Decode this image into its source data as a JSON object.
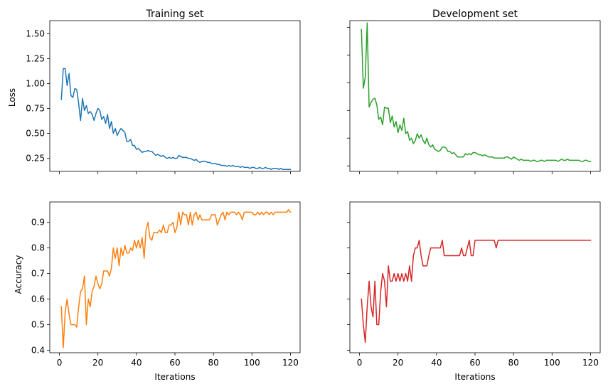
{
  "chart_data": [
    {
      "type": "line",
      "title": "Training set",
      "xlabel": "",
      "ylabel": "Loss",
      "xlim": [
        -5,
        125
      ],
      "ylim": [
        0.12,
        1.63
      ],
      "xticks": [
        0,
        20,
        40,
        60,
        80,
        100,
        120
      ],
      "show_xtick_labels": false,
      "yticks": [
        0.25,
        0.5,
        0.75,
        1.0,
        1.25,
        1.5
      ],
      "ytick_labels": [
        "0.25",
        "0.50",
        "0.75",
        "1.00",
        "1.25",
        "1.50"
      ],
      "show_ytick_labels": true,
      "grid": false,
      "color": "#1f77b4",
      "series": [
        {
          "x": [
            1,
            2,
            3,
            4,
            5,
            6,
            7,
            8,
            9,
            10,
            11,
            12,
            13,
            14,
            15,
            16,
            17,
            18,
            19,
            20,
            21,
            22,
            23,
            24,
            25,
            26,
            27,
            28,
            29,
            30,
            31,
            32,
            33,
            34,
            35,
            36,
            37,
            38,
            39,
            40,
            41,
            42,
            43,
            44,
            45,
            46,
            47,
            48,
            49,
            50,
            51,
            52,
            53,
            54,
            55,
            56,
            57,
            58,
            59,
            60,
            61,
            62,
            63,
            64,
            65,
            66,
            67,
            68,
            69,
            70,
            71,
            72,
            73,
            74,
            75,
            76,
            77,
            78,
            79,
            80,
            81,
            82,
            83,
            84,
            85,
            86,
            87,
            88,
            89,
            90,
            91,
            92,
            93,
            94,
            95,
            96,
            97,
            98,
            99,
            100,
            101,
            102,
            103,
            104,
            105,
            106,
            107,
            108,
            109,
            110,
            111,
            112,
            113,
            114,
            115,
            116,
            117,
            118,
            119,
            120
          ],
          "y": [
            0.84,
            1.15,
            1.15,
            0.98,
            1.1,
            0.88,
            0.86,
            0.95,
            0.94,
            0.8,
            0.63,
            0.85,
            0.73,
            0.78,
            0.7,
            0.72,
            0.69,
            0.63,
            0.7,
            0.75,
            0.73,
            0.64,
            0.67,
            0.6,
            0.69,
            0.55,
            0.62,
            0.5,
            0.55,
            0.48,
            0.52,
            0.55,
            0.53,
            0.51,
            0.42,
            0.42,
            0.44,
            0.38,
            0.38,
            0.34,
            0.35,
            0.33,
            0.31,
            0.32,
            0.32,
            0.33,
            0.32,
            0.32,
            0.3,
            0.28,
            0.29,
            0.28,
            0.27,
            0.28,
            0.26,
            0.25,
            0.26,
            0.25,
            0.26,
            0.25,
            0.25,
            0.28,
            0.27,
            0.26,
            0.26,
            0.26,
            0.25,
            0.25,
            0.24,
            0.23,
            0.24,
            0.22,
            0.21,
            0.22,
            0.22,
            0.22,
            0.21,
            0.21,
            0.2,
            0.2,
            0.2,
            0.19,
            0.19,
            0.18,
            0.18,
            0.18,
            0.17,
            0.18,
            0.17,
            0.18,
            0.17,
            0.17,
            0.17,
            0.16,
            0.17,
            0.16,
            0.16,
            0.16,
            0.15,
            0.16,
            0.16,
            0.15,
            0.15,
            0.16,
            0.15,
            0.15,
            0.16,
            0.15,
            0.15,
            0.14,
            0.15,
            0.15,
            0.15,
            0.14,
            0.15,
            0.14,
            0.14,
            0.14,
            0.14,
            0.14
          ]
        }
      ]
    },
    {
      "type": "line",
      "title": "Development set",
      "xlabel": "",
      "ylabel": "",
      "xlim": [
        -5,
        125
      ],
      "ylim": [
        0.2,
        1.56
      ],
      "xticks": [
        0,
        20,
        40,
        60,
        80,
        100,
        120
      ],
      "show_xtick_labels": false,
      "yticks": [
        0.25,
        0.5,
        0.75,
        1.0,
        1.25,
        1.5
      ],
      "show_ytick_labels": false,
      "grid": false,
      "color": "#2ca02c",
      "series": [
        {
          "x": [
            1,
            2,
            3,
            4,
            5,
            6,
            7,
            8,
            9,
            10,
            11,
            12,
            13,
            14,
            15,
            16,
            17,
            18,
            19,
            20,
            21,
            22,
            23,
            24,
            25,
            26,
            27,
            28,
            29,
            30,
            31,
            32,
            33,
            34,
            35,
            36,
            37,
            38,
            39,
            40,
            41,
            42,
            43,
            44,
            45,
            46,
            47,
            48,
            49,
            50,
            51,
            52,
            53,
            54,
            55,
            56,
            57,
            58,
            59,
            60,
            61,
            62,
            63,
            64,
            65,
            66,
            67,
            68,
            69,
            70,
            71,
            72,
            73,
            74,
            75,
            76,
            77,
            78,
            79,
            80,
            81,
            82,
            83,
            84,
            85,
            86,
            87,
            88,
            89,
            90,
            91,
            92,
            93,
            94,
            95,
            96,
            97,
            98,
            99,
            100,
            101,
            102,
            103,
            104,
            105,
            106,
            107,
            108,
            109,
            110,
            111,
            112,
            113,
            114,
            115,
            116,
            117,
            118,
            119,
            120
          ],
          "y": [
            1.48,
            0.95,
            1.05,
            1.54,
            0.78,
            0.82,
            0.85,
            0.86,
            0.8,
            0.67,
            0.69,
            0.62,
            0.78,
            0.77,
            0.77,
            0.64,
            0.7,
            0.6,
            0.65,
            0.55,
            0.62,
            0.57,
            0.68,
            0.54,
            0.56,
            0.48,
            0.5,
            0.45,
            0.48,
            0.54,
            0.5,
            0.53,
            0.48,
            0.45,
            0.5,
            0.44,
            0.42,
            0.44,
            0.4,
            0.39,
            0.38,
            0.39,
            0.42,
            0.42,
            0.41,
            0.38,
            0.38,
            0.36,
            0.37,
            0.35,
            0.33,
            0.33,
            0.33,
            0.33,
            0.36,
            0.35,
            0.36,
            0.35,
            0.37,
            0.37,
            0.36,
            0.35,
            0.35,
            0.34,
            0.35,
            0.34,
            0.33,
            0.33,
            0.33,
            0.32,
            0.32,
            0.32,
            0.32,
            0.32,
            0.32,
            0.33,
            0.33,
            0.32,
            0.31,
            0.33,
            0.32,
            0.31,
            0.3,
            0.31,
            0.3,
            0.3,
            0.3,
            0.3,
            0.29,
            0.3,
            0.3,
            0.29,
            0.29,
            0.3,
            0.3,
            0.29,
            0.3,
            0.3,
            0.3,
            0.3,
            0.3,
            0.3,
            0.29,
            0.3,
            0.31,
            0.3,
            0.3,
            0.31,
            0.3,
            0.3,
            0.3,
            0.3,
            0.3,
            0.3,
            0.29,
            0.29,
            0.3,
            0.3,
            0.29,
            0.29
          ]
        }
      ]
    },
    {
      "type": "line",
      "title": "",
      "xlabel": "Iterations",
      "ylabel": "Accuracy",
      "xlim": [
        -5,
        125
      ],
      "ylim": [
        0.39,
        0.98
      ],
      "xticks": [
        0,
        20,
        40,
        60,
        80,
        100,
        120
      ],
      "xtick_labels": [
        "0",
        "20",
        "40",
        "60",
        "80",
        "100",
        "120"
      ],
      "show_xtick_labels": true,
      "yticks": [
        0.4,
        0.5,
        0.6,
        0.7,
        0.8,
        0.9
      ],
      "ytick_labels": [
        "0.4",
        "0.5",
        "0.6",
        "0.7",
        "0.8",
        "0.9"
      ],
      "show_ytick_labels": true,
      "grid": false,
      "color": "#ff7f0e",
      "series": [
        {
          "x": [
            1,
            2,
            3,
            4,
            5,
            6,
            7,
            8,
            9,
            10,
            11,
            12,
            13,
            14,
            15,
            16,
            17,
            18,
            19,
            20,
            21,
            22,
            23,
            24,
            25,
            26,
            27,
            28,
            29,
            30,
            31,
            32,
            33,
            34,
            35,
            36,
            37,
            38,
            39,
            40,
            41,
            42,
            43,
            44,
            45,
            46,
            47,
            48,
            49,
            50,
            51,
            52,
            53,
            54,
            55,
            56,
            57,
            58,
            59,
            60,
            61,
            62,
            63,
            64,
            65,
            66,
            67,
            68,
            69,
            70,
            71,
            72,
            73,
            74,
            75,
            76,
            77,
            78,
            79,
            80,
            81,
            82,
            83,
            84,
            85,
            86,
            87,
            88,
            89,
            90,
            91,
            92,
            93,
            94,
            95,
            96,
            97,
            98,
            99,
            100,
            101,
            102,
            103,
            104,
            105,
            106,
            107,
            108,
            109,
            110,
            111,
            112,
            113,
            114,
            115,
            116,
            117,
            118,
            119,
            120
          ],
          "y": [
            0.57,
            0.41,
            0.55,
            0.6,
            0.54,
            0.5,
            0.5,
            0.5,
            0.49,
            0.57,
            0.63,
            0.64,
            0.69,
            0.5,
            0.6,
            0.57,
            0.63,
            0.65,
            0.69,
            0.66,
            0.64,
            0.66,
            0.71,
            0.71,
            0.71,
            0.69,
            0.72,
            0.8,
            0.76,
            0.8,
            0.73,
            0.8,
            0.77,
            0.81,
            0.78,
            0.78,
            0.8,
            0.79,
            0.83,
            0.8,
            0.83,
            0.8,
            0.84,
            0.76,
            0.87,
            0.9,
            0.84,
            0.83,
            0.86,
            0.86,
            0.86,
            0.87,
            0.86,
            0.89,
            0.86,
            0.86,
            0.89,
            0.89,
            0.9,
            0.86,
            0.88,
            0.94,
            0.89,
            0.94,
            0.93,
            0.93,
            0.89,
            0.94,
            0.89,
            0.93,
            0.94,
            0.91,
            0.93,
            0.91,
            0.91,
            0.91,
            0.91,
            0.91,
            0.93,
            0.93,
            0.93,
            0.89,
            0.91,
            0.93,
            0.94,
            0.91,
            0.94,
            0.93,
            0.94,
            0.94,
            0.94,
            0.93,
            0.94,
            0.93,
            0.91,
            0.94,
            0.94,
            0.94,
            0.94,
            0.94,
            0.93,
            0.93,
            0.94,
            0.93,
            0.94,
            0.93,
            0.94,
            0.94,
            0.93,
            0.94,
            0.93,
            0.94,
            0.94,
            0.94,
            0.94,
            0.94,
            0.94,
            0.94,
            0.95,
            0.94
          ]
        }
      ]
    },
    {
      "type": "line",
      "title": "",
      "xlabel": "Iterations",
      "ylabel": "",
      "xlim": [
        -5,
        125
      ],
      "ylim": [
        0.39,
        0.98
      ],
      "xticks": [
        0,
        20,
        40,
        60,
        80,
        100,
        120
      ],
      "xtick_labels": [
        "0",
        "20",
        "40",
        "60",
        "80",
        "100",
        "120"
      ],
      "show_xtick_labels": true,
      "yticks": [
        0.4,
        0.5,
        0.6,
        0.7,
        0.8,
        0.9
      ],
      "show_ytick_labels": false,
      "grid": false,
      "color": "#d62728",
      "series": [
        {
          "x": [
            1,
            2,
            3,
            4,
            5,
            6,
            7,
            8,
            9,
            10,
            11,
            12,
            13,
            14,
            15,
            16,
            17,
            18,
            19,
            20,
            21,
            22,
            23,
            24,
            25,
            26,
            27,
            28,
            29,
            30,
            31,
            32,
            33,
            34,
            35,
            36,
            37,
            38,
            39,
            40,
            41,
            42,
            43,
            44,
            45,
            46,
            47,
            48,
            49,
            50,
            51,
            52,
            53,
            54,
            55,
            56,
            57,
            58,
            59,
            60,
            61,
            62,
            63,
            64,
            65,
            66,
            67,
            68,
            69,
            70,
            71,
            72,
            73,
            74,
            75,
            76,
            77,
            78,
            79,
            80,
            81,
            82,
            83,
            84,
            85,
            86,
            87,
            88,
            89,
            90,
            91,
            92,
            93,
            94,
            95,
            96,
            97,
            98,
            99,
            100,
            101,
            102,
            103,
            104,
            105,
            106,
            107,
            108,
            109,
            110,
            111,
            112,
            113,
            114,
            115,
            116,
            117,
            118,
            119,
            120
          ],
          "y": [
            0.6,
            0.5,
            0.43,
            0.57,
            0.67,
            0.57,
            0.53,
            0.67,
            0.5,
            0.5,
            0.63,
            0.7,
            0.67,
            0.57,
            0.73,
            0.67,
            0.67,
            0.7,
            0.67,
            0.7,
            0.67,
            0.7,
            0.67,
            0.7,
            0.67,
            0.73,
            0.67,
            0.77,
            0.8,
            0.8,
            0.83,
            0.77,
            0.73,
            0.73,
            0.73,
            0.77,
            0.8,
            0.8,
            0.8,
            0.8,
            0.8,
            0.8,
            0.83,
            0.77,
            0.77,
            0.77,
            0.77,
            0.77,
            0.77,
            0.77,
            0.77,
            0.77,
            0.8,
            0.77,
            0.77,
            0.8,
            0.83,
            0.77,
            0.77,
            0.83,
            0.83,
            0.83,
            0.83,
            0.83,
            0.83,
            0.83,
            0.83,
            0.83,
            0.83,
            0.83,
            0.8,
            0.83,
            0.83,
            0.83,
            0.83,
            0.83,
            0.83,
            0.83,
            0.83,
            0.83,
            0.83,
            0.83,
            0.83,
            0.83,
            0.83,
            0.83,
            0.83,
            0.83,
            0.83,
            0.83,
            0.83,
            0.83,
            0.83,
            0.83,
            0.83,
            0.83,
            0.83,
            0.83,
            0.83,
            0.83,
            0.83,
            0.83,
            0.83,
            0.83,
            0.83,
            0.83,
            0.83,
            0.83,
            0.83,
            0.83,
            0.83,
            0.83,
            0.83,
            0.83,
            0.83,
            0.83,
            0.83,
            0.83,
            0.83,
            0.83
          ]
        }
      ]
    }
  ]
}
